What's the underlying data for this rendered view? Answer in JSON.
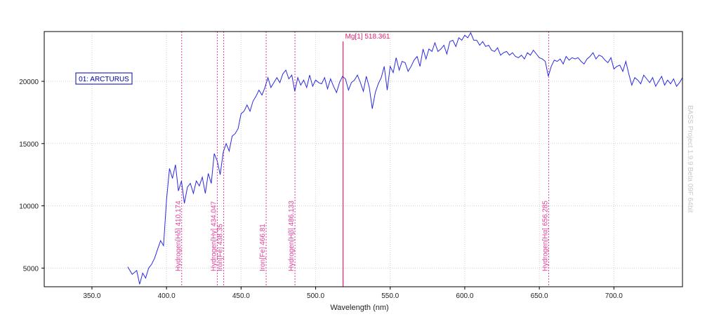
{
  "chart_data": {
    "type": "line",
    "title": "",
    "xlabel": "Wavelength (nm)",
    "ylabel": "",
    "xlim": [
      318,
      746
    ],
    "ylim": [
      3500,
      24000
    ],
    "x_ticks": [
      350,
      400,
      450,
      500,
      550,
      600,
      650,
      700
    ],
    "x_tick_labels": [
      "350.0",
      "400.0",
      "450.0",
      "500.0",
      "550.0",
      "600.0",
      "650.0",
      "700.0"
    ],
    "y_ticks": [
      5000,
      10000,
      15000,
      20000
    ],
    "y_tick_labels": [
      "5000",
      "10000",
      "15000",
      "20000"
    ],
    "grid": true,
    "legend_label": "01: ARCTURUS",
    "watermark": "BASS Project 1.9.9 Beta 09F 64bit",
    "colors": {
      "series": "#2a2ae0",
      "markers": "#e0409a",
      "primary_marker": "#e8206e"
    },
    "series": [
      {
        "name": "01: ARCTURUS",
        "x": [
          374,
          377,
          380,
          382,
          384,
          386,
          388,
          390,
          392,
          394,
          396,
          398,
          400,
          402,
          404,
          406,
          408,
          410,
          412,
          414,
          416,
          418,
          420,
          422,
          424,
          426,
          428,
          430,
          432,
          434,
          436,
          438,
          440,
          442,
          444,
          446,
          448,
          450,
          452,
          454,
          456,
          458,
          460,
          462,
          464,
          466,
          468,
          470,
          472,
          474,
          476,
          478,
          480,
          482,
          484,
          486,
          488,
          490,
          492,
          494,
          496,
          498,
          500,
          502,
          504,
          506,
          508,
          510,
          512,
          514,
          516,
          518,
          520,
          522,
          524,
          526,
          528,
          530,
          532,
          534,
          536,
          538,
          540,
          542,
          544,
          546,
          548,
          550,
          552,
          554,
          556,
          558,
          560,
          562,
          564,
          566,
          568,
          570,
          572,
          574,
          576,
          578,
          580,
          582,
          584,
          586,
          588,
          590,
          592,
          594,
          596,
          598,
          600,
          602,
          604,
          606,
          608,
          610,
          612,
          614,
          616,
          618,
          620,
          622,
          624,
          626,
          628,
          630,
          632,
          634,
          636,
          638,
          640,
          642,
          644,
          646,
          648,
          650,
          652,
          654,
          656,
          658,
          660,
          662,
          664,
          666,
          668,
          670,
          672,
          674,
          676,
          678,
          680,
          682,
          684,
          686,
          688,
          690,
          692,
          694,
          696,
          698,
          700,
          702,
          704,
          706,
          708,
          710,
          712,
          714,
          716,
          718,
          720,
          722,
          724,
          726,
          728,
          730,
          732,
          734,
          736,
          738,
          740,
          742,
          744,
          746
        ],
        "y": [
          5100,
          4500,
          4800,
          3700,
          4600,
          4200,
          5000,
          5300,
          5800,
          6500,
          7200,
          6800,
          10500,
          13000,
          12200,
          13300,
          11200,
          12000,
          10200,
          11500,
          11800,
          11000,
          12000,
          11600,
          12300,
          11000,
          12600,
          11800,
          14200,
          13600,
          12500,
          14300,
          15000,
          14400,
          15600,
          15800,
          16200,
          17400,
          17600,
          18100,
          17600,
          18400,
          18800,
          19300,
          18900,
          19500,
          20300,
          19500,
          19900,
          20300,
          19900,
          20600,
          20900,
          20200,
          20500,
          19200,
          20300,
          19700,
          20100,
          19500,
          20500,
          19600,
          20100,
          19900,
          19800,
          20300,
          19400,
          20200,
          19600,
          19100,
          19900,
          20400,
          20200,
          19300,
          19900,
          20100,
          20500,
          19900,
          19200,
          20400,
          19500,
          17800,
          19100,
          19800,
          20300,
          21200,
          19300,
          21200,
          20700,
          21900,
          20900,
          21600,
          21500,
          20800,
          21200,
          21700,
          22000,
          21200,
          22600,
          21800,
          22600,
          22400,
          23100,
          22400,
          22600,
          22900,
          22200,
          23200,
          23300,
          22800,
          23500,
          23300,
          23700,
          23500,
          23900,
          23300,
          23300,
          22900,
          23200,
          22800,
          22900,
          22500,
          22400,
          22700,
          22100,
          22300,
          22400,
          22100,
          22300,
          22000,
          21900,
          22100,
          21800,
          22300,
          22100,
          22500,
          22200,
          21900,
          21800,
          21600,
          20400,
          21200,
          21700,
          21600,
          21800,
          21400,
          22000,
          21700,
          21900,
          21800,
          21900,
          21600,
          21400,
          21800,
          22000,
          22300,
          21800,
          22100,
          22000,
          21700,
          21500,
          21900,
          21000,
          21200,
          21300,
          20800,
          21600,
          20600,
          19700,
          20300,
          20100,
          19800,
          20500,
          20200,
          19900,
          20300,
          19600,
          20000,
          20400,
          19700,
          20100,
          19800,
          20200,
          19600,
          19900,
          20300
        ]
      }
    ],
    "markers": [
      {
        "label": "Hydrogen[Hδ] 410.174",
        "x": 410.174,
        "primary": false
      },
      {
        "label": "Hydrogen[Hγ] 434.047",
        "x": 434.047,
        "primary": false
      },
      {
        "label": "Iron[Fe] 438.35",
        "x": 438.35,
        "primary": false
      },
      {
        "label": "Iron[Fe] 466.81",
        "x": 466.81,
        "primary": false
      },
      {
        "label": "Hydrogen[Hβ] 486.133",
        "x": 486.133,
        "primary": false
      },
      {
        "label": "Mg[1] 518.361",
        "x": 518.361,
        "primary": true
      },
      {
        "label": "Hydrogen[Hα] 656.285",
        "x": 656.285,
        "primary": false
      }
    ]
  }
}
